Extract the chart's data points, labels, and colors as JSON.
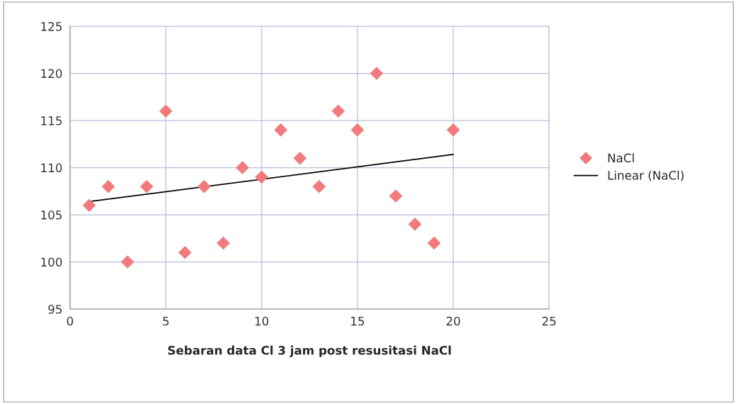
{
  "chart_data": {
    "type": "scatter",
    "xlabel": "Sebaran data Cl 3 jam post resusitasi NaCl",
    "x": [
      1,
      2,
      3,
      4,
      5,
      6,
      7,
      8,
      9,
      10,
      11,
      12,
      13,
      14,
      15,
      16,
      17,
      18,
      19,
      20
    ],
    "series": [
      {
        "name": "NaCl",
        "color": "#f27a7d",
        "marker": "diamond",
        "values": [
          106,
          108,
          100,
          108,
          116,
          101,
          108,
          102,
          110,
          109,
          114,
          111,
          108,
          116,
          114,
          120,
          107,
          104,
          102,
          114
        ]
      },
      {
        "name": "Linear (NaCl)",
        "type": "line",
        "color": "#000000",
        "marker": "none",
        "line_style": "solid",
        "x": [
          1,
          20
        ],
        "values": [
          106.4,
          111.4
        ]
      }
    ],
    "xlim": [
      0,
      25
    ],
    "xticks": [
      0,
      5,
      10,
      15,
      20,
      25
    ],
    "ylim": [
      95,
      125
    ],
    "yticks": [
      95,
      100,
      105,
      110,
      115,
      120,
      125
    ],
    "grid": true,
    "legend": "right"
  }
}
